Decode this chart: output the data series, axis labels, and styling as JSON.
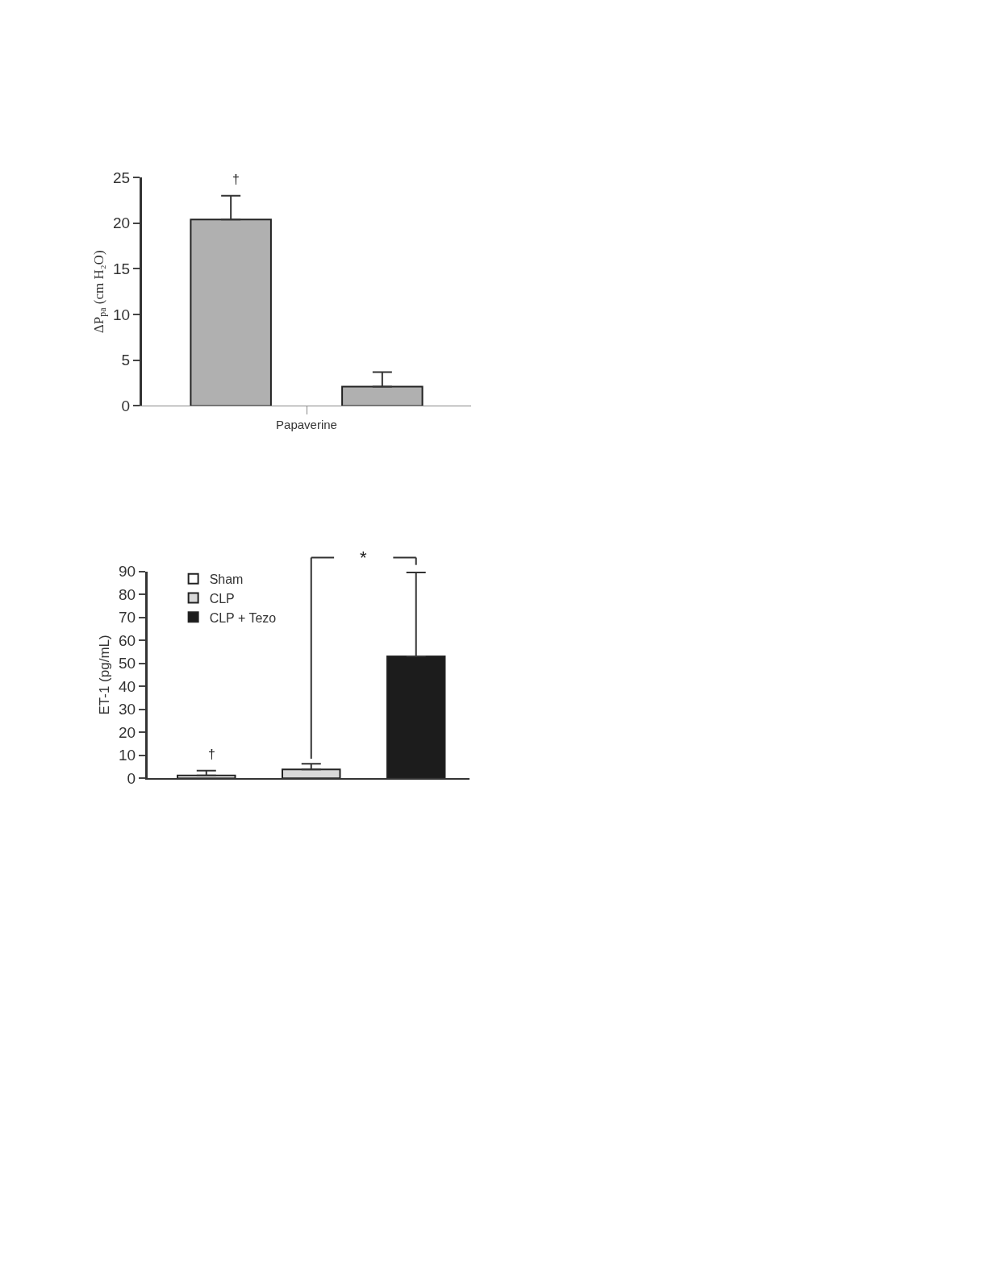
{
  "chart_data": [
    {
      "type": "bar",
      "categories": [
        "Papaverine"
      ],
      "ylabel": "ΔP$_{pa}$ (cm H₂O)",
      "series": [
        {
          "color": "#b0b0b0",
          "values": [
            20.4
          ],
          "errors": [
            [
              20.4,
              23.0
            ]
          ]
        },
        {
          "color": "#b0b0b0",
          "values": [
            2.1
          ],
          "errors": [
            [
              2.1,
              3.7
            ]
          ]
        }
      ],
      "ylim": [
        0,
        25
      ],
      "yticks": [
        0,
        5,
        10,
        15,
        20,
        25
      ],
      "legend": false,
      "annotations": [
        "†"
      ]
    },
    {
      "type": "bar",
      "categories": [
        null,
        null,
        null
      ],
      "ylabel": "ET-1 (pg/mL)",
      "series": [
        {
          "name": "Sham",
          "color": "#ffffff",
          "values": [
            1.2,
            null,
            null
          ],
          "errors": [
            [
              1.2,
              3.3
            ],
            null,
            null
          ]
        },
        {
          "name": "CLP",
          "color": "#d9d9d9",
          "values": [
            null,
            3.8,
            null
          ],
          "errors": [
            null,
            [
              3.8,
              6.3
            ],
            null
          ]
        },
        {
          "name": "CLP + Tezo",
          "color": "#1c1c1c",
          "values": [
            null,
            null,
            53
          ],
          "errors": [
            null,
            null,
            [
              53,
              89.5
            ]
          ]
        }
      ],
      "ylim": [
        0,
        90
      ],
      "yticks": [
        0,
        10,
        20,
        30,
        40,
        50,
        60,
        70,
        80,
        90
      ],
      "legend": "top left",
      "annotations": [
        "†",
        "*"
      ]
    }
  ]
}
